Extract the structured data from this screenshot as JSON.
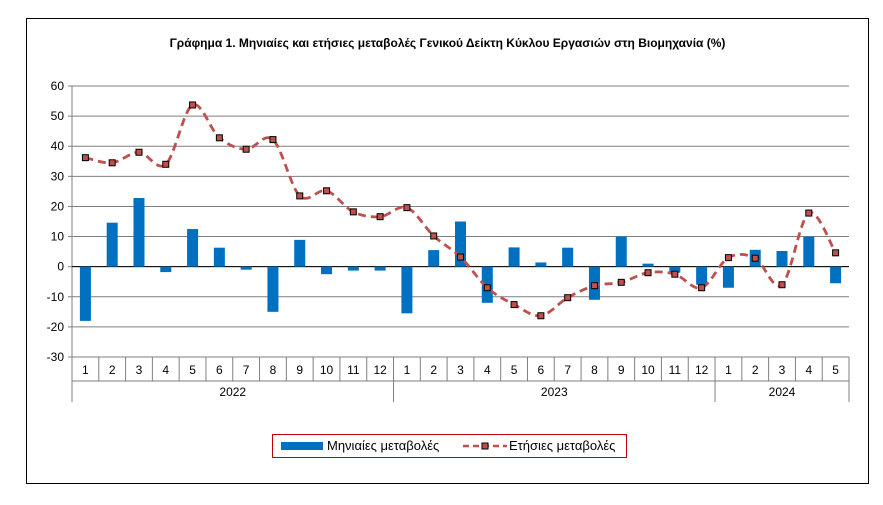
{
  "chart_data": {
    "type": "bar+line",
    "title": "Γράφημα 1.  Μηνιαίες και ετήσιες μεταβολές  Γενικού Δείκτη Κύκλου Εργασιών στη Βιομηχανία  (%)",
    "categories": [
      "1",
      "2",
      "3",
      "4",
      "5",
      "6",
      "7",
      "8",
      "9",
      "10",
      "11",
      "12",
      "1",
      "2",
      "3",
      "4",
      "5",
      "6",
      "7",
      "8",
      "9",
      "10",
      "11",
      "12",
      "1",
      "2",
      "3",
      "4",
      "5"
    ],
    "groups": [
      {
        "label": "2022",
        "count": 12
      },
      {
        "label": "2023",
        "count": 12
      },
      {
        "label": "2024",
        "count": 5
      }
    ],
    "ylim": [
      -30,
      60
    ],
    "yticks": [
      60,
      50,
      40,
      30,
      20,
      10,
      0,
      -10,
      -20,
      -30
    ],
    "grid": true,
    "legend_position": "bottom",
    "series": [
      {
        "name": "Μηνιαίες μεταβολές",
        "type": "bar",
        "color": "#0070c0",
        "values": [
          -18.0,
          14.6,
          22.8,
          -1.8,
          12.5,
          6.3,
          -1.0,
          -15.0,
          8.9,
          -2.5,
          -1.3,
          -1.3,
          -15.5,
          5.5,
          15.0,
          -12.0,
          6.4,
          1.4,
          6.3,
          -11.0,
          10.0,
          1.0,
          -2.0,
          -6.0,
          -7.0,
          5.6,
          5.2,
          10.0,
          -5.5
        ]
      },
      {
        "name": "Ετήσιες μεταβολές",
        "type": "line",
        "color": "#c0504d",
        "marker_color": "#000000",
        "values": [
          36.2,
          34.5,
          38.0,
          34.0,
          53.7,
          42.8,
          39.0,
          42.2,
          23.5,
          25.2,
          18.2,
          16.6,
          19.6,
          10.2,
          3.2,
          -7.0,
          -12.6,
          -16.3,
          -10.3,
          -6.3,
          -5.2,
          -2.0,
          -2.5,
          -7.0,
          3.0,
          2.8,
          -6.0,
          17.8,
          4.6
        ]
      }
    ]
  }
}
